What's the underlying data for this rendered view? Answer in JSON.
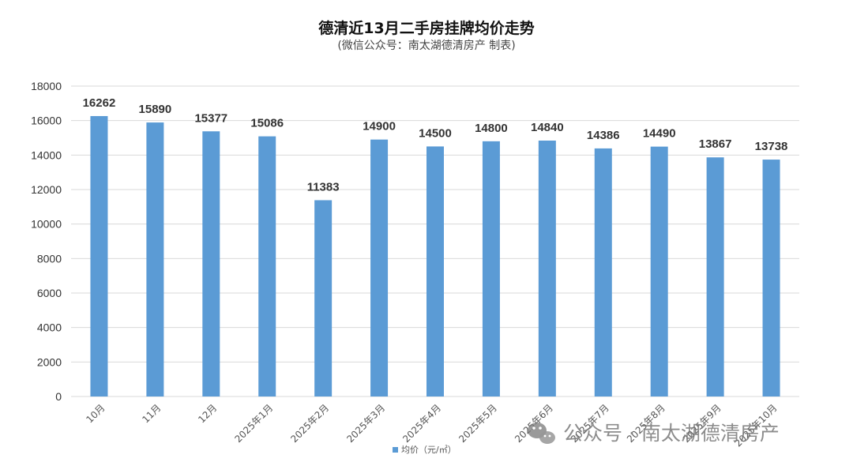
{
  "chart_data": {
    "type": "bar",
    "title": "德清近13月二手房挂牌均价走势",
    "subtitle": "(微信公众号：南太湖德清房产 制表)",
    "categories": [
      "10月",
      "11月",
      "12月",
      "2025年1月",
      "2025年2月",
      "2025年3月",
      "2025年4月",
      "2025年5月",
      "2025年6月",
      "2025年7月",
      "2025年8月",
      "2025年9月",
      "2025年10月"
    ],
    "series": [
      {
        "name": "均价（元/㎡）",
        "values": [
          16262,
          15890,
          15377,
          15086,
          11383,
          14900,
          14500,
          14800,
          14840,
          14386,
          14490,
          13867,
          13738
        ]
      }
    ],
    "ylim": [
      0,
      18000
    ],
    "yticks": [
      0,
      2000,
      4000,
      6000,
      8000,
      10000,
      12000,
      14000,
      16000,
      18000
    ],
    "grid": true,
    "legend": "bottom",
    "bar_color": "#5b9bd5"
  },
  "watermark": {
    "icon": "wechat-icon",
    "text": "公众号 · 南太湖德清房产"
  }
}
